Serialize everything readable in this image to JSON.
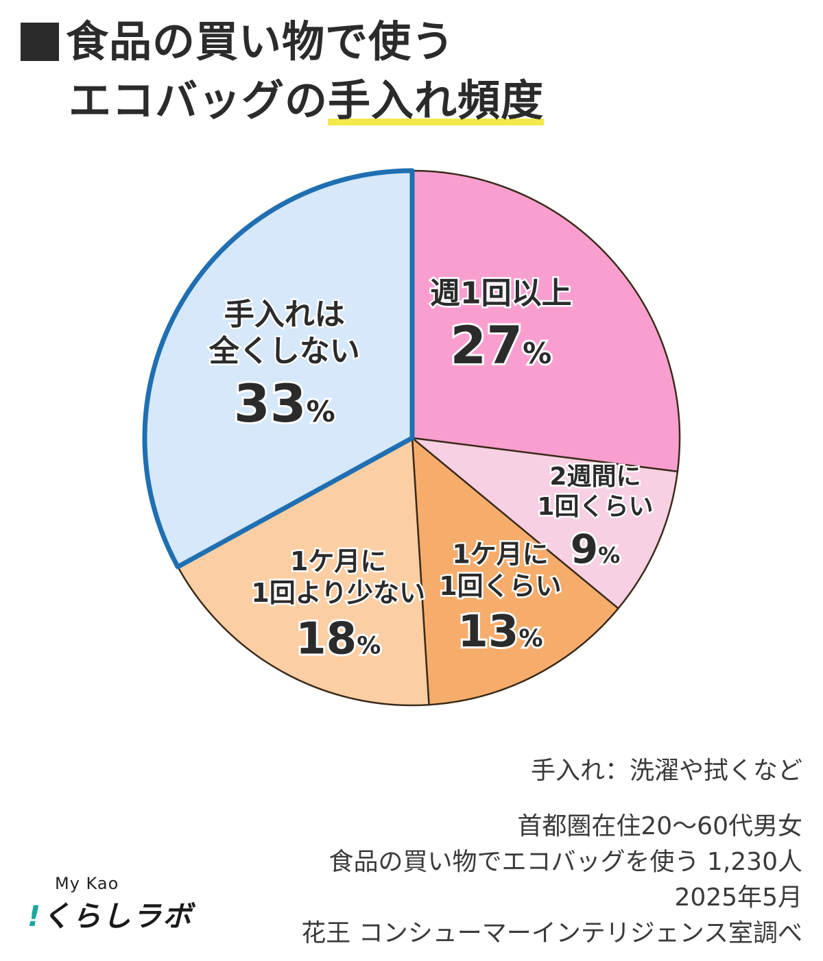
{
  "title": {
    "line1": "食品の買い物で使う",
    "line2_plain": "エコバッグの",
    "line2_highlight": "手入れ頻度"
  },
  "chart_data": {
    "type": "pie",
    "start_angle_deg": 0,
    "direction": "clockwise",
    "slices": [
      {
        "label_lines": [
          "週1回以上"
        ],
        "value": 27,
        "color": "#f99fcf",
        "pct": "27"
      },
      {
        "label_lines": [
          "2週間に",
          "1回くらい"
        ],
        "value": 9,
        "color": "#f7d0e3",
        "pct": "9"
      },
      {
        "label_lines": [
          "1ケ月に",
          "1回くらい"
        ],
        "value": 13,
        "color": "#f6ad6c",
        "pct": "13"
      },
      {
        "label_lines": [
          "1ケ月に",
          "1回より少ない"
        ],
        "value": 18,
        "color": "#fbcfa3",
        "pct": "18"
      },
      {
        "label_lines": [
          "手入れは",
          "全くしない"
        ],
        "value": 33,
        "color": "#d6e8f9",
        "pct": "33",
        "highlight": true
      }
    ],
    "percent_sign": "%",
    "highlight_color": "#1f6fb2"
  },
  "note": "手入れ：洗濯や拭くなど",
  "source": [
    "首都圏在住20〜60代男女",
    "食品の買い物でエコバッグを使う 1,230人",
    "2025年5月",
    "花王 コンシューマーインテリジェンス室調べ"
  ],
  "brand": {
    "mykao": "My Kao",
    "bang": "!",
    "kurashi": "くらしラボ"
  }
}
